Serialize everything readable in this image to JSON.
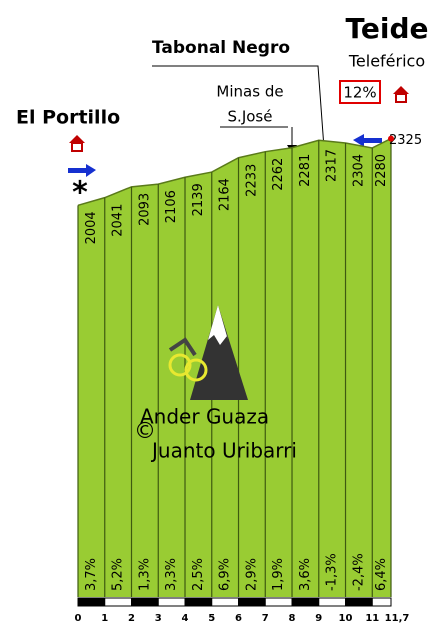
{
  "chart_data": {
    "type": "profile",
    "x": [
      0,
      1,
      2,
      3,
      4,
      5,
      6,
      7,
      8,
      9,
      10,
      11,
      11.7
    ],
    "values": [
      2004,
      2041,
      2093,
      2106,
      2139,
      2164,
      2233,
      2262,
      2281,
      2317,
      2304,
      2280,
      2325
    ],
    "gradients": {
      "values": [
        3.7,
        5.2,
        1.3,
        3.3,
        2.5,
        6.9,
        2.9,
        1.9,
        3.6,
        -1.3,
        -2.4,
        6.4
      ],
      "value_labels": [
        "3,7%",
        "5,2%",
        "1,3%",
        "3,3%",
        "2,5%",
        "6,9%",
        "2,9%",
        "1,9%",
        "3,6%",
        "-1,3%",
        "-2,4%",
        "6,4%"
      ]
    },
    "xlim": [
      0,
      11.7
    ],
    "xticks": [
      0,
      1,
      2,
      3,
      4,
      5,
      6,
      7,
      8,
      9,
      10,
      11,
      {
        "value": 11.7,
        "label": "11,7"
      }
    ],
    "ylim": [
      120,
      2400
    ],
    "color": "#99cc33",
    "annotations": {
      "summit": "Teide",
      "summit_sub": "Teleférico",
      "max_gradient": "12%",
      "pass": "Tabonal Negro",
      "mines_1": "Minas de",
      "mines_2": "S.José",
      "start": "El Portillo",
      "credit_1": "Ander Guaza",
      "credit_2": "Juanto Uribarri"
    }
  }
}
